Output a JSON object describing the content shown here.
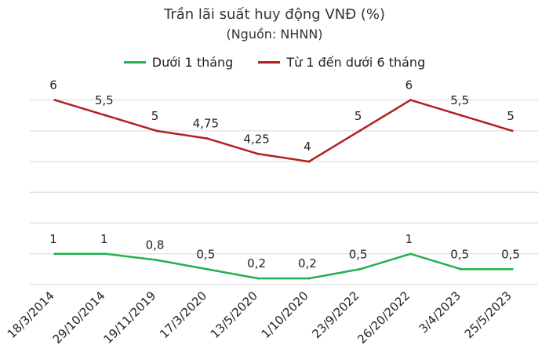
{
  "chart_data": {
    "type": "line",
    "title": "Trần lãi suất huy động VNĐ (%)",
    "subtitle": "(Nguồn: NHNN)",
    "categories": [
      "18/3/2014",
      "29/10/2014",
      "19/11/2019",
      "17/3/2020",
      "13/5/2020",
      "1/10/2020",
      "23/9/2022",
      "26/20/2022",
      "3/4/2023",
      "25/5/2023"
    ],
    "series": [
      {
        "name": "Dưới 1 tháng",
        "color": "#22b14c",
        "values": [
          1,
          1,
          0.8,
          0.5,
          0.2,
          0.2,
          0.5,
          1,
          0.5,
          0.5
        ],
        "labels": [
          "1",
          "1",
          "0,8",
          "0,5",
          "0,2",
          "0,2",
          "0,5",
          "1",
          "0,5",
          "0,5"
        ]
      },
      {
        "name": "Từ 1 đến dưới 6 tháng",
        "color": "#b21f1f",
        "values": [
          6,
          5.5,
          5,
          4.75,
          4.25,
          4,
          5,
          6,
          5.5,
          5
        ],
        "labels": [
          "6",
          "5,5",
          "5",
          "4,75",
          "4,25",
          "4",
          "5",
          "6",
          "5,5",
          "5"
        ]
      }
    ],
    "ylim": [
      0,
      6.5
    ],
    "grid": true,
    "legend_position": "top"
  }
}
